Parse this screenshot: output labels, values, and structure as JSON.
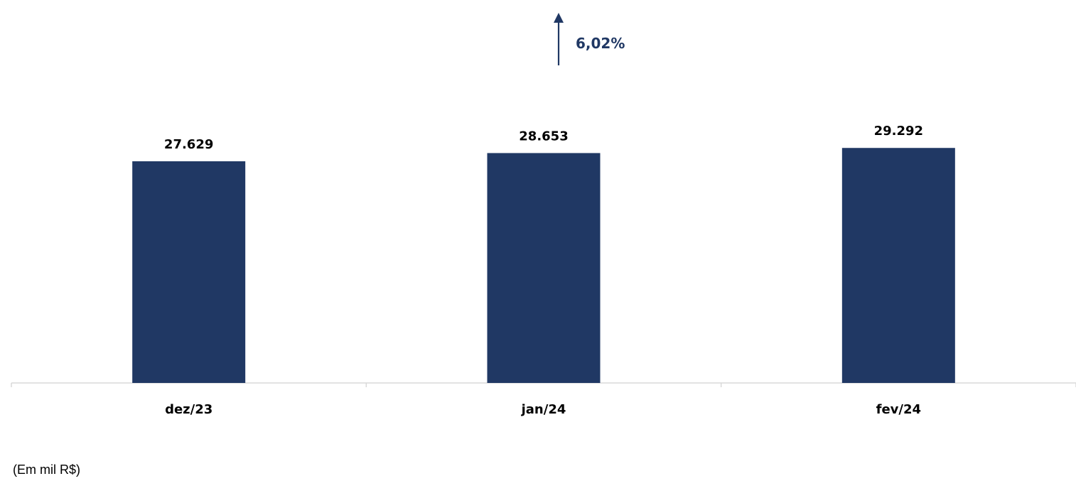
{
  "chart_data": {
    "type": "bar",
    "categories": [
      "dez/23",
      "jan/24",
      "fev/24"
    ],
    "values": [
      27629,
      28653,
      29292
    ],
    "value_labels": [
      "27.629",
      "28.653",
      "29.292"
    ],
    "growth_label": "6,02%",
    "growth_direction": "up",
    "unit_note": "(Em mil R$)",
    "ylim": [
      0,
      33000
    ],
    "grid": false,
    "legend": "none",
    "bar_color": "#203864",
    "axis_color": "#d9d9d9",
    "text_color": "#000000"
  }
}
